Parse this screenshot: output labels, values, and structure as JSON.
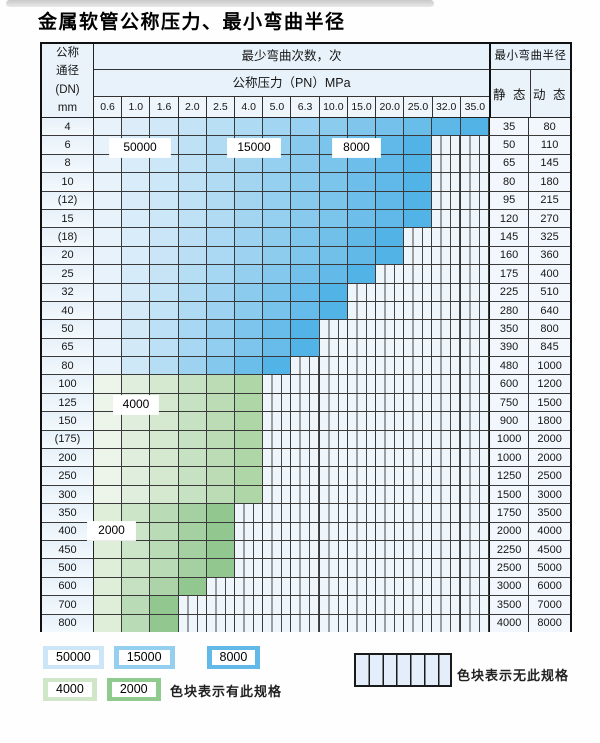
{
  "title": "金属软管公称压力、最小弯曲半径",
  "table": {
    "corner": {
      "line1": "公称",
      "line2": "通径",
      "line3": "(DN)",
      "line4": "mm"
    },
    "bend_times_header": "最少弯曲次数，次",
    "pressure_header": "公称压力（PN）MPa",
    "pressure_columns": [
      "0.6",
      "1.0",
      "1.6",
      "2.0",
      "2.5",
      "4.0",
      "5.0",
      "6.3",
      "10.0",
      "15.0",
      "20.0",
      "25.0",
      "32.0",
      "35.0"
    ],
    "radius_header": "最小弯曲半径",
    "static_header": "静 态",
    "dynamic_header": "动 态",
    "rows": [
      {
        "dn": "4",
        "zone": "blue",
        "colored_columns": 14,
        "static": "35",
        "dynamic": "80"
      },
      {
        "dn": "6",
        "zone": "blue",
        "colored_columns": 12,
        "static": "50",
        "dynamic": "110"
      },
      {
        "dn": "8",
        "zone": "blue",
        "colored_columns": 12,
        "static": "65",
        "dynamic": "145"
      },
      {
        "dn": "10",
        "zone": "blue",
        "colored_columns": 12,
        "static": "80",
        "dynamic": "180"
      },
      {
        "dn": "(12)",
        "zone": "blue",
        "colored_columns": 12,
        "static": "95",
        "dynamic": "215"
      },
      {
        "dn": "15",
        "zone": "blue",
        "colored_columns": 12,
        "static": "120",
        "dynamic": "270"
      },
      {
        "dn": "(18)",
        "zone": "blue",
        "colored_columns": 11,
        "static": "145",
        "dynamic": "325"
      },
      {
        "dn": "20",
        "zone": "blue",
        "colored_columns": 11,
        "static": "160",
        "dynamic": "360"
      },
      {
        "dn": "25",
        "zone": "blue",
        "colored_columns": 10,
        "static": "175",
        "dynamic": "400"
      },
      {
        "dn": "32",
        "zone": "blue",
        "colored_columns": 9,
        "static": "225",
        "dynamic": "510"
      },
      {
        "dn": "40",
        "zone": "blue",
        "colored_columns": 9,
        "static": "280",
        "dynamic": "640"
      },
      {
        "dn": "50",
        "zone": "blue",
        "colored_columns": 8,
        "static": "350",
        "dynamic": "800"
      },
      {
        "dn": "65",
        "zone": "blue",
        "colored_columns": 8,
        "static": "390",
        "dynamic": "845"
      },
      {
        "dn": "80",
        "zone": "blue",
        "colored_columns": 7,
        "static": "480",
        "dynamic": "1000"
      },
      {
        "dn": "100",
        "zone": "green_light",
        "colored_columns": 6,
        "static": "600",
        "dynamic": "1200"
      },
      {
        "dn": "125",
        "zone": "green_light",
        "colored_columns": 6,
        "static": "750",
        "dynamic": "1500"
      },
      {
        "dn": "150",
        "zone": "green_light",
        "colored_columns": 6,
        "static": "900",
        "dynamic": "1800"
      },
      {
        "dn": "(175)",
        "zone": "green_light",
        "colored_columns": 6,
        "static": "1000",
        "dynamic": "2000"
      },
      {
        "dn": "200",
        "zone": "green_light",
        "colored_columns": 6,
        "static": "1000",
        "dynamic": "2000"
      },
      {
        "dn": "250",
        "zone": "green_light",
        "colored_columns": 6,
        "static": "1250",
        "dynamic": "2500"
      },
      {
        "dn": "300",
        "zone": "green_light",
        "colored_columns": 6,
        "static": "1500",
        "dynamic": "3000"
      },
      {
        "dn": "350",
        "zone": "green_dark",
        "colored_columns": 5,
        "static": "1750",
        "dynamic": "3500"
      },
      {
        "dn": "400",
        "zone": "green_dark",
        "colored_columns": 5,
        "static": "2000",
        "dynamic": "4000"
      },
      {
        "dn": "450",
        "zone": "green_dark",
        "colored_columns": 5,
        "static": "2250",
        "dynamic": "4500"
      },
      {
        "dn": "500",
        "zone": "green_dark",
        "colored_columns": 5,
        "static": "2500",
        "dynamic": "5000"
      },
      {
        "dn": "600",
        "zone": "green_dark",
        "colored_columns": 4,
        "static": "3000",
        "dynamic": "6000"
      },
      {
        "dn": "700",
        "zone": "green_dark",
        "colored_columns": 3,
        "static": "3500",
        "dynamic": "7000"
      },
      {
        "dn": "800",
        "zone": "green_dark",
        "colored_columns": 3,
        "static": "4000",
        "dynamic": "8000"
      }
    ]
  },
  "zone_labels": {
    "z50000": "50000",
    "z15000": "15000",
    "z8000": "8000",
    "z4000": "4000",
    "z2000": "2000"
  },
  "legend": {
    "swatches": [
      {
        "label": "50000",
        "color": "#cce5f7"
      },
      {
        "label": "15000",
        "color": "#94cff0"
      },
      {
        "label": "8000",
        "color": "#62b9e8"
      },
      {
        "label": "4000",
        "color": "#cfe6c8"
      },
      {
        "label": "2000",
        "color": "#90ca8e"
      }
    ],
    "has_spec_text": "色块表示有此规格",
    "no_spec_text": "色块表示无此规格"
  },
  "colors": {
    "blue_start": "#e7f2fb",
    "blue_end": "#52b3e6",
    "green_light_start": "#edf5ea",
    "green_light_end": "#aed6a7",
    "green_dark_start": "#dfeed9",
    "green_dark_end": "#92c790",
    "hatch_bg": "#eef5fb",
    "hatch_line": "#474747"
  }
}
